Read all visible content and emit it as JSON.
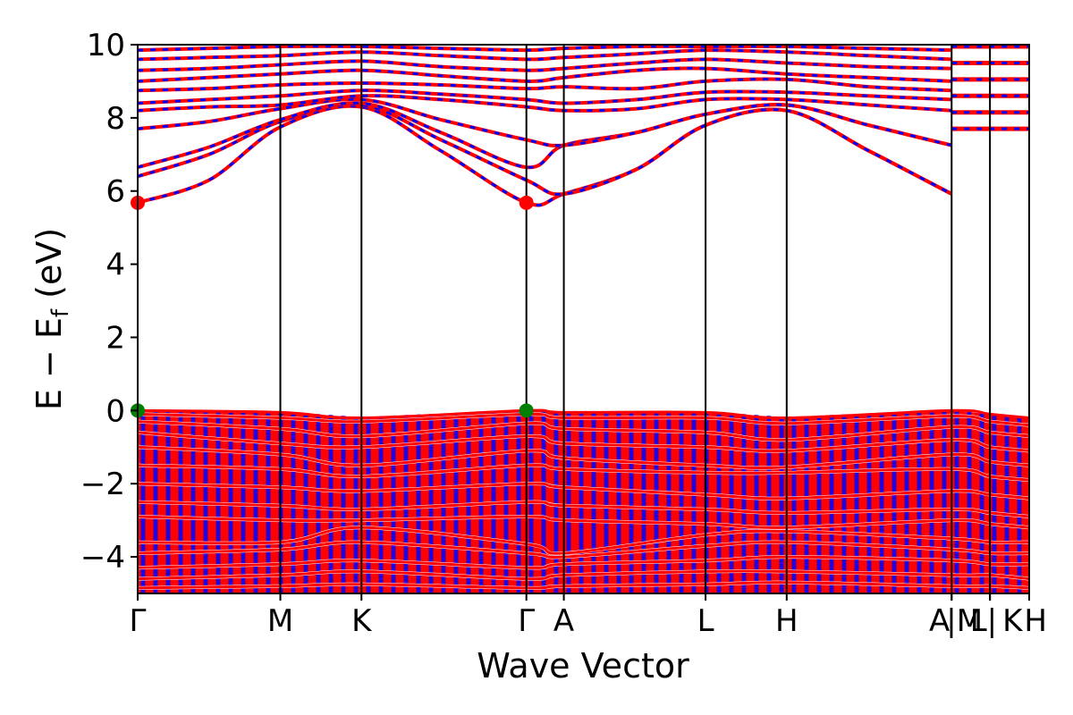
{
  "chart_data": {
    "type": "line",
    "xlabel": "Wave Vector",
    "ylabel_main": "E − E",
    "ylabel_sub": "f",
    "ylabel_unit": "(eV)",
    "ylim": [
      -5,
      10
    ],
    "y_ticks": [
      -4,
      -2,
      0,
      2,
      4,
      6,
      8,
      10
    ],
    "y_tick_labels": [
      "−4",
      "−2",
      "0",
      "2",
      "4",
      "6",
      "8",
      "10"
    ],
    "xlim": [
      0,
      1
    ],
    "k_points": [
      {
        "label": "Γ",
        "x": 0.0
      },
      {
        "label": "M",
        "x": 0.16
      },
      {
        "label": "K",
        "x": 0.251
      },
      {
        "label": "Γ",
        "x": 0.436
      },
      {
        "label": "A",
        "x": 0.478
      },
      {
        "label": "L",
        "x": 0.637
      },
      {
        "label": "H",
        "x": 0.728
      },
      {
        "label": "A",
        "x": 0.913
      },
      {
        "label": "|M",
        "x": 0.913
      },
      {
        "label": "L|",
        "x": 0.956
      },
      {
        "label": "K",
        "x": 0.956
      },
      {
        "label": "H",
        "x": 1.0
      }
    ],
    "series": [
      {
        "color": "#ff0000",
        "style": "solid"
      },
      {
        "color": "#0000ff",
        "style": "dashed"
      }
    ],
    "conduction_band_minimum": {
      "points": [
        {
          "x": 0.0,
          "y": 5.68
        },
        {
          "x": 0.436,
          "y": 5.68
        }
      ],
      "color": "#ff0000"
    },
    "valence_band_maximum": {
      "points": [
        {
          "x": 0.0,
          "y": 0.0
        },
        {
          "x": 0.436,
          "y": 0.0
        }
      ],
      "color": "#008000"
    },
    "conduction_bands": [
      [
        [
          0.0,
          5.68
        ],
        [
          0.08,
          6.3
        ],
        [
          0.16,
          7.75
        ],
        [
          0.251,
          8.3
        ],
        [
          0.34,
          7.1
        ],
        [
          0.436,
          5.68
        ],
        [
          0.478,
          5.92
        ],
        [
          0.56,
          6.6
        ],
        [
          0.637,
          7.8
        ],
        [
          0.728,
          8.2
        ],
        [
          0.82,
          7.1
        ],
        [
          0.913,
          5.92
        ]
      ],
      [
        [
          0.0,
          6.4
        ],
        [
          0.08,
          7.0
        ],
        [
          0.16,
          7.9
        ],
        [
          0.251,
          8.35
        ],
        [
          0.34,
          7.4
        ],
        [
          0.436,
          6.3
        ],
        [
          0.478,
          5.92
        ],
        [
          0.56,
          6.6
        ],
        [
          0.637,
          7.8
        ],
        [
          0.728,
          8.2
        ],
        [
          0.82,
          7.1
        ],
        [
          0.913,
          5.92
        ]
      ],
      [
        [
          0.0,
          6.65
        ],
        [
          0.08,
          7.2
        ],
        [
          0.16,
          7.95
        ],
        [
          0.251,
          8.4
        ],
        [
          0.34,
          7.6
        ],
        [
          0.436,
          6.65
        ],
        [
          0.478,
          7.25
        ],
        [
          0.56,
          7.6
        ],
        [
          0.637,
          8.1
        ],
        [
          0.728,
          8.35
        ],
        [
          0.82,
          7.8
        ],
        [
          0.913,
          7.25
        ]
      ],
      [
        [
          0.0,
          7.7
        ],
        [
          0.08,
          7.9
        ],
        [
          0.16,
          8.25
        ],
        [
          0.251,
          8.5
        ],
        [
          0.34,
          7.95
        ],
        [
          0.436,
          7.4
        ],
        [
          0.478,
          7.25
        ],
        [
          0.56,
          7.6
        ],
        [
          0.637,
          8.1
        ],
        [
          0.728,
          8.35
        ],
        [
          0.82,
          7.8
        ],
        [
          0.913,
          7.25
        ]
      ],
      [
        [
          0.0,
          8.2
        ],
        [
          0.08,
          8.3
        ],
        [
          0.16,
          8.35
        ],
        [
          0.251,
          8.6
        ],
        [
          0.34,
          8.5
        ],
        [
          0.436,
          8.3
        ],
        [
          0.478,
          8.2
        ],
        [
          0.56,
          8.25
        ],
        [
          0.637,
          8.5
        ],
        [
          0.728,
          8.5
        ],
        [
          0.82,
          8.35
        ],
        [
          0.913,
          8.2
        ]
      ],
      [
        [
          0.0,
          8.4
        ],
        [
          0.08,
          8.5
        ],
        [
          0.16,
          8.6
        ],
        [
          0.251,
          8.75
        ],
        [
          0.34,
          8.65
        ],
        [
          0.436,
          8.5
        ],
        [
          0.478,
          8.4
        ],
        [
          0.56,
          8.5
        ],
        [
          0.637,
          8.7
        ],
        [
          0.728,
          8.7
        ],
        [
          0.82,
          8.6
        ],
        [
          0.913,
          8.5
        ]
      ],
      [
        [
          0.0,
          8.75
        ],
        [
          0.08,
          8.8
        ],
        [
          0.16,
          8.9
        ],
        [
          0.251,
          8.95
        ],
        [
          0.34,
          8.9
        ],
        [
          0.436,
          8.8
        ],
        [
          0.478,
          8.85
        ],
        [
          0.56,
          8.8
        ],
        [
          0.637,
          9.0
        ],
        [
          0.728,
          9.05
        ],
        [
          0.82,
          8.85
        ],
        [
          0.913,
          8.75
        ]
      ],
      [
        [
          0.0,
          9.0
        ],
        [
          0.08,
          9.1
        ],
        [
          0.16,
          9.2
        ],
        [
          0.251,
          9.3
        ],
        [
          0.34,
          9.15
        ],
        [
          0.436,
          9.0
        ],
        [
          0.478,
          9.1
        ],
        [
          0.56,
          9.3
        ],
        [
          0.637,
          9.35
        ],
        [
          0.728,
          9.2
        ],
        [
          0.82,
          9.1
        ],
        [
          0.913,
          9.0
        ]
      ],
      [
        [
          0.0,
          9.3
        ],
        [
          0.08,
          9.35
        ],
        [
          0.16,
          9.45
        ],
        [
          0.251,
          9.55
        ],
        [
          0.34,
          9.4
        ],
        [
          0.436,
          9.3
        ],
        [
          0.478,
          9.35
        ],
        [
          0.56,
          9.5
        ],
        [
          0.637,
          9.6
        ],
        [
          0.728,
          9.5
        ],
        [
          0.82,
          9.4
        ],
        [
          0.913,
          9.35
        ]
      ],
      [
        [
          0.0,
          9.6
        ],
        [
          0.08,
          9.65
        ],
        [
          0.16,
          9.7
        ],
        [
          0.251,
          9.8
        ],
        [
          0.34,
          9.7
        ],
        [
          0.436,
          9.6
        ],
        [
          0.478,
          9.65
        ],
        [
          0.56,
          9.75
        ],
        [
          0.637,
          9.85
        ],
        [
          0.728,
          9.8
        ],
        [
          0.82,
          9.7
        ],
        [
          0.913,
          9.6
        ]
      ],
      [
        [
          0.0,
          9.85
        ],
        [
          0.08,
          9.9
        ],
        [
          0.16,
          9.95
        ],
        [
          0.251,
          9.95
        ],
        [
          0.34,
          9.9
        ],
        [
          0.436,
          9.85
        ],
        [
          0.478,
          9.9
        ],
        [
          0.56,
          9.95
        ],
        [
          0.637,
          9.95
        ],
        [
          0.728,
          9.95
        ],
        [
          0.82,
          9.9
        ],
        [
          0.913,
          9.85
        ]
      ]
    ],
    "valence_bands": [
      [
        [
          0.0,
          0.0
        ],
        [
          0.16,
          -0.05
        ],
        [
          0.251,
          -0.2
        ],
        [
          0.436,
          0.0
        ],
        [
          0.478,
          -0.05
        ],
        [
          0.637,
          -0.05
        ],
        [
          0.728,
          -0.2
        ],
        [
          0.913,
          0.0
        ],
        [
          0.956,
          -0.1
        ],
        [
          1.0,
          -0.2
        ]
      ],
      [
        [
          0.0,
          -0.1
        ],
        [
          0.16,
          -0.2
        ],
        [
          0.251,
          -0.3
        ],
        [
          0.436,
          -0.1
        ],
        [
          0.478,
          -0.2
        ],
        [
          0.637,
          -0.2
        ],
        [
          0.728,
          -0.35
        ],
        [
          0.913,
          -0.15
        ],
        [
          0.956,
          -0.3
        ],
        [
          1.0,
          -0.4
        ]
      ],
      [
        [
          0.0,
          -0.3
        ],
        [
          0.16,
          -0.5
        ],
        [
          0.251,
          -0.7
        ],
        [
          0.436,
          -0.35
        ],
        [
          0.478,
          -0.5
        ],
        [
          0.637,
          -0.6
        ],
        [
          0.728,
          -0.8
        ],
        [
          0.913,
          -0.45
        ],
        [
          0.956,
          -0.6
        ],
        [
          1.0,
          -0.7
        ]
      ],
      [
        [
          0.0,
          -0.6
        ],
        [
          0.16,
          -0.9
        ],
        [
          0.251,
          -1.0
        ],
        [
          0.436,
          -0.7
        ],
        [
          0.478,
          -0.9
        ],
        [
          0.637,
          -1.0
        ],
        [
          0.728,
          -1.1
        ],
        [
          0.913,
          -0.8
        ],
        [
          0.956,
          -1.0
        ],
        [
          1.0,
          -1.1
        ]
      ],
      [
        [
          0.0,
          -1.0
        ],
        [
          0.16,
          -1.2
        ],
        [
          0.251,
          -1.5
        ],
        [
          0.436,
          -1.1
        ],
        [
          0.478,
          -1.3
        ],
        [
          0.637,
          -1.5
        ],
        [
          0.728,
          -1.55
        ],
        [
          0.913,
          -1.2
        ],
        [
          0.956,
          -1.4
        ],
        [
          1.0,
          -1.5
        ]
      ],
      [
        [
          0.0,
          -1.5
        ],
        [
          0.16,
          -1.6
        ],
        [
          0.251,
          -1.8
        ],
        [
          0.436,
          -1.5
        ],
        [
          0.478,
          -1.6
        ],
        [
          0.637,
          -1.7
        ],
        [
          0.728,
          -1.7
        ],
        [
          0.913,
          -1.6
        ],
        [
          0.956,
          -1.8
        ],
        [
          1.0,
          -1.9
        ]
      ],
      [
        [
          0.0,
          -2.0
        ],
        [
          0.16,
          -2.1
        ],
        [
          0.251,
          -2.2
        ],
        [
          0.436,
          -2.0
        ],
        [
          0.478,
          -2.1
        ],
        [
          0.637,
          -2.3
        ],
        [
          0.728,
          -2.4
        ],
        [
          0.913,
          -2.2
        ],
        [
          0.956,
          -2.3
        ],
        [
          1.0,
          -2.4
        ]
      ],
      [
        [
          0.0,
          -2.5
        ],
        [
          0.16,
          -2.6
        ],
        [
          0.251,
          -2.7
        ],
        [
          0.436,
          -2.5
        ],
        [
          0.478,
          -2.6
        ],
        [
          0.637,
          -2.7
        ],
        [
          0.728,
          -2.8
        ],
        [
          0.913,
          -2.7
        ],
        [
          0.956,
          -2.8
        ],
        [
          1.0,
          -2.9
        ]
      ],
      [
        [
          0.0,
          -2.9
        ],
        [
          0.16,
          -3.0
        ],
        [
          0.251,
          -3.0
        ],
        [
          0.436,
          -2.9
        ],
        [
          0.478,
          -3.0
        ],
        [
          0.637,
          -3.1
        ],
        [
          0.728,
          -3.2
        ],
        [
          0.913,
          -3.0
        ],
        [
          0.956,
          -3.1
        ],
        [
          1.0,
          -3.2
        ]
      ],
      [
        [
          0.0,
          -3.6
        ],
        [
          0.16,
          -3.6
        ],
        [
          0.251,
          -3.2
        ],
        [
          0.436,
          -3.65
        ],
        [
          0.478,
          -3.9
        ],
        [
          0.637,
          -3.4
        ],
        [
          0.728,
          -3.3
        ],
        [
          0.913,
          -3.5
        ],
        [
          0.956,
          -3.6
        ],
        [
          1.0,
          -3.6
        ]
      ],
      [
        [
          0.0,
          -3.9
        ],
        [
          0.16,
          -3.8
        ],
        [
          0.251,
          -3.6
        ],
        [
          0.436,
          -3.9
        ],
        [
          0.478,
          -4.0
        ],
        [
          0.637,
          -3.7
        ],
        [
          0.728,
          -3.6
        ],
        [
          0.913,
          -3.8
        ],
        [
          0.956,
          -3.9
        ],
        [
          1.0,
          -3.9
        ]
      ],
      [
        [
          0.0,
          -4.3
        ],
        [
          0.16,
          -4.2
        ],
        [
          0.251,
          -4.1
        ],
        [
          0.436,
          -4.3
        ],
        [
          0.478,
          -4.2
        ],
        [
          0.637,
          -4.1
        ],
        [
          0.728,
          -4.0
        ],
        [
          0.913,
          -4.1
        ],
        [
          0.956,
          -4.2
        ],
        [
          1.0,
          -4.2
        ]
      ],
      [
        [
          0.0,
          -4.6
        ],
        [
          0.16,
          -4.5
        ],
        [
          0.251,
          -4.4
        ],
        [
          0.436,
          -4.6
        ],
        [
          0.478,
          -4.5
        ],
        [
          0.637,
          -4.4
        ],
        [
          0.728,
          -4.4
        ],
        [
          0.913,
          -4.5
        ],
        [
          0.956,
          -4.5
        ],
        [
          1.0,
          -4.6
        ]
      ],
      [
        [
          0.0,
          -4.85
        ],
        [
          0.16,
          -4.8
        ],
        [
          0.251,
          -4.75
        ],
        [
          0.436,
          -4.85
        ],
        [
          0.478,
          -4.8
        ],
        [
          0.637,
          -4.75
        ],
        [
          0.728,
          -4.7
        ],
        [
          0.913,
          -4.8
        ],
        [
          0.956,
          -4.8
        ],
        [
          1.0,
          -4.85
        ]
      ]
    ]
  }
}
